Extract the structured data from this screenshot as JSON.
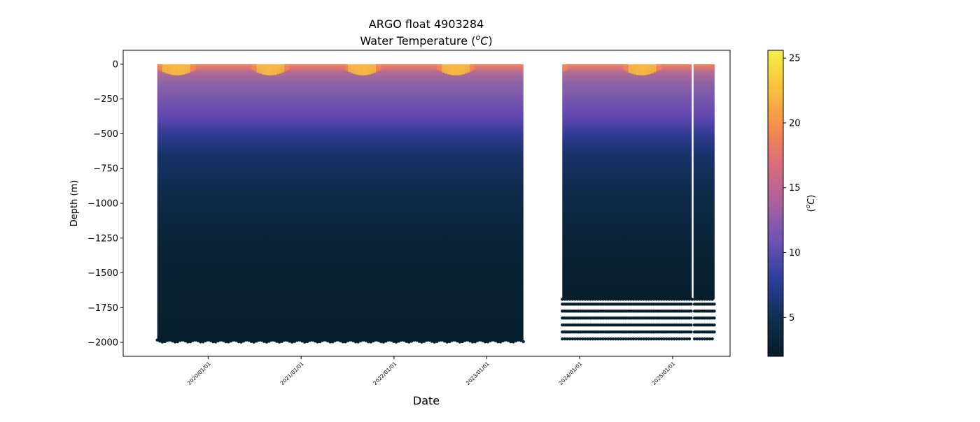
{
  "chart_data": {
    "type": "heatmap",
    "title": "ARGO float 4903284",
    "subtitle_prefix": "Water Temperature (",
    "subtitle_unit_base": "o",
    "subtitle_unit_letter": "C",
    "subtitle_suffix": ")",
    "xlabel": "Date",
    "ylabel": "Depth (m)",
    "xlim": [
      "2019-02-01",
      "2025-08-15"
    ],
    "ylim": [
      -2100,
      100
    ],
    "yticks": [
      0,
      -250,
      -500,
      -750,
      -1000,
      -1250,
      -1500,
      -1750,
      -2000
    ],
    "ytick_labels": [
      "0",
      "−250",
      "−500",
      "−750",
      "−1000",
      "−1250",
      "−1500",
      "−1750",
      "−2000"
    ],
    "xticks": [
      "2020-01-01",
      "2021-01-01",
      "2022-01-01",
      "2023-01-01",
      "2024-01-01",
      "2025-01-01"
    ],
    "xtick_labels": [
      "2020/01/01",
      "2021/01/01",
      "2022/01/01",
      "2023/01/01",
      "2024/01/01",
      "2025/01/01"
    ],
    "segments": [
      {
        "start": "2019-06-15",
        "end": "2023-05-25",
        "max_depth": -1990,
        "surface_warm_until": -100
      },
      {
        "start": "2023-10-25",
        "end": "2025-06-15",
        "max_depth": -1690,
        "surface_warm_until": -120,
        "gap_date": "2025-03-20"
      }
    ],
    "sparse_depths": [
      -1725,
      -1775,
      -1825,
      -1875,
      -1925,
      -1975
    ],
    "colorbar": {
      "label_unit_base": "o",
      "label_unit_letter": "C",
      "range": [
        2.0,
        25.6
      ],
      "ticks": [
        5,
        10,
        15,
        20,
        25
      ],
      "tick_labels": [
        "5",
        "10",
        "15",
        "20",
        "25"
      ],
      "colors": [
        "#041c27",
        "#0e3050",
        "#2b3f9b",
        "#6d52b3",
        "#a8619e",
        "#d96c7e",
        "#f58c4e",
        "#f8c13e",
        "#f2ee4a"
      ]
    }
  }
}
